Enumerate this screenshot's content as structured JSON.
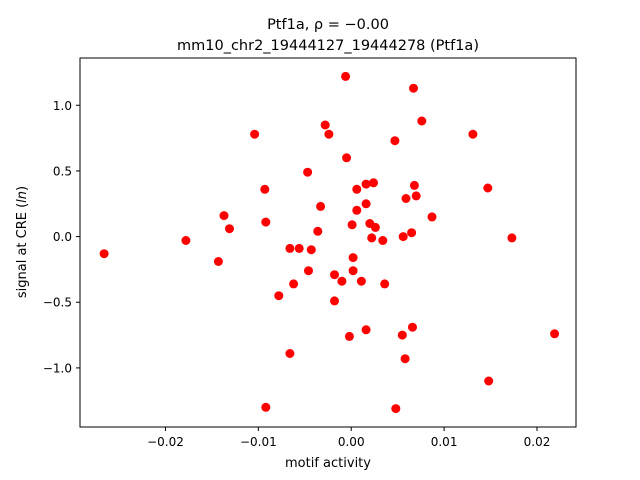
{
  "chart_data": {
    "type": "scatter",
    "title_line1": "Ptf1a, ρ = −0.00",
    "title_line2": "mm10_chr2_19444127_19444278 (Ptf1a)",
    "xlabel": "motif activity",
    "ylabel": "signal at CRE (",
    "ylabel_italic": "ln",
    "ylabel_close": ")",
    "xlim": [
      -0.0292,
      0.0242
    ],
    "ylim": [
      -1.45,
      1.36
    ],
    "xticks": [
      -0.02,
      -0.01,
      0.0,
      0.01,
      0.02
    ],
    "xtick_labels": [
      "−0.02",
      "−0.01",
      "0.00",
      "0.01",
      "0.02"
    ],
    "yticks": [
      -1.0,
      -0.5,
      0.0,
      0.5,
      1.0
    ],
    "ytick_labels": [
      "−1.0",
      "−0.5",
      "0.0",
      "0.5",
      "1.0"
    ],
    "marker_color": "#ff0000",
    "points": [
      [
        -0.0266,
        -0.13
      ],
      [
        -0.0178,
        -0.03
      ],
      [
        -0.0143,
        -0.19
      ],
      [
        -0.0137,
        0.16
      ],
      [
        -0.0131,
        0.06
      ],
      [
        -0.0104,
        0.78
      ],
      [
        -0.0093,
        0.36
      ],
      [
        -0.0092,
        0.11
      ],
      [
        -0.0092,
        -1.3
      ],
      [
        -0.0078,
        -0.45
      ],
      [
        -0.0066,
        -0.09
      ],
      [
        -0.0066,
        -0.89
      ],
      [
        -0.0062,
        -0.36
      ],
      [
        -0.0056,
        -0.09
      ],
      [
        -0.0047,
        0.49
      ],
      [
        -0.0046,
        -0.26
      ],
      [
        -0.0043,
        -0.1
      ],
      [
        -0.0036,
        0.04
      ],
      [
        -0.0033,
        0.23
      ],
      [
        -0.0028,
        0.85
      ],
      [
        -0.0024,
        0.78
      ],
      [
        -0.0018,
        -0.29
      ],
      [
        -0.0018,
        -0.49
      ],
      [
        -0.001,
        -0.34
      ],
      [
        -0.0006,
        1.22
      ],
      [
        -0.0005,
        0.6
      ],
      [
        -0.0002,
        -0.76
      ],
      [
        0.0001,
        0.09
      ],
      [
        0.0002,
        -0.16
      ],
      [
        0.0002,
        -0.26
      ],
      [
        0.0006,
        0.36
      ],
      [
        0.0006,
        0.2
      ],
      [
        0.0011,
        -0.34
      ],
      [
        0.0016,
        0.25
      ],
      [
        0.0016,
        0.4
      ],
      [
        0.0016,
        -0.71
      ],
      [
        0.002,
        0.1
      ],
      [
        0.0022,
        -0.01
      ],
      [
        0.0024,
        0.41
      ],
      [
        0.0026,
        0.07
      ],
      [
        0.0034,
        -0.03
      ],
      [
        0.0036,
        -0.36
      ],
      [
        0.0047,
        0.73
      ],
      [
        0.0048,
        -1.31
      ],
      [
        0.0055,
        -0.75
      ],
      [
        0.0056,
        0.0
      ],
      [
        0.0058,
        -0.93
      ],
      [
        0.0059,
        0.29
      ],
      [
        0.0065,
        0.03
      ],
      [
        0.0066,
        -0.69
      ],
      [
        0.0067,
        1.13
      ],
      [
        0.0068,
        0.39
      ],
      [
        0.007,
        0.31
      ],
      [
        0.0076,
        0.88
      ],
      [
        0.0087,
        0.15
      ],
      [
        0.0131,
        0.78
      ],
      [
        0.0147,
        0.37
      ],
      [
        0.0148,
        -1.1
      ],
      [
        0.0173,
        -0.01
      ],
      [
        0.0219,
        -0.74
      ]
    ]
  }
}
